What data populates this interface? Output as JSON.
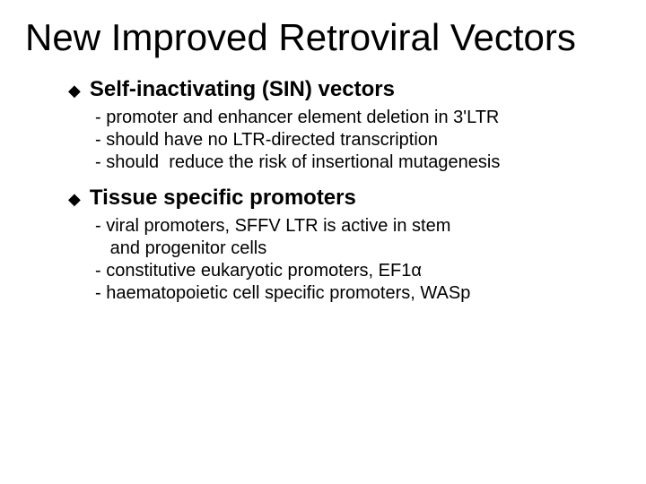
{
  "title": "New Improved Retroviral Vectors",
  "title_fontsize": 42,
  "text_color": "#000000",
  "background_color": "#ffffff",
  "bullet_glyph": "◆",
  "bullet_color": "#000000",
  "sections": [
    {
      "heading": "Self-inactivating (SIN) vectors",
      "heading_fontsize": 24,
      "heading_weight": "bold",
      "items": [
        "- promoter and enhancer element deletion in 3'LTR",
        "- should have no LTR-directed transcription",
        "- should  reduce the risk of insertional mutagenesis"
      ],
      "item_fontsize": 20
    },
    {
      "heading": "Tissue specific promoters",
      "heading_fontsize": 24,
      "heading_weight": "bold",
      "items": [
        "- viral promoters, SFFV LTR is active in stem\n   and progenitor cells",
        "- constitutive eukaryotic promoters, EF1α",
        "- haematopoietic cell specific promoters, WASp"
      ],
      "item_fontsize": 20
    }
  ]
}
